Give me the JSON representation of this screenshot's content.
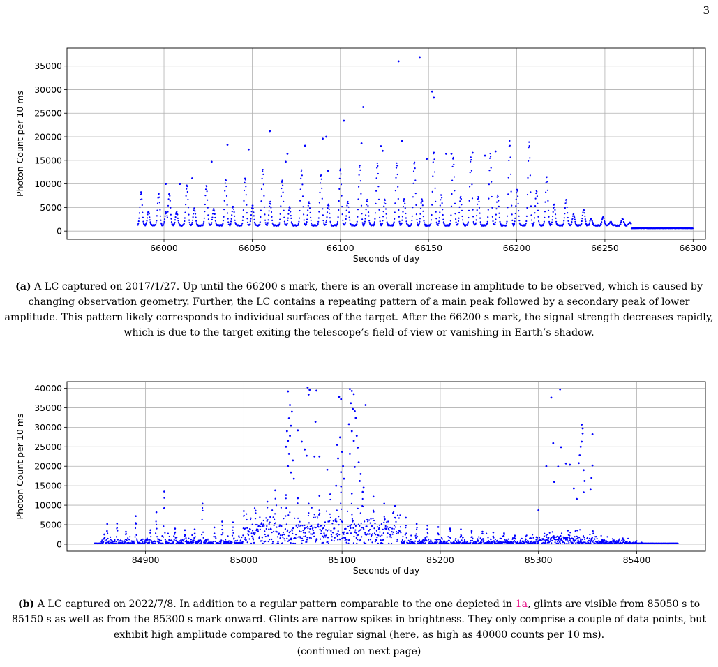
{
  "page": {
    "number": "3",
    "bottom_note": "(continued on next page)"
  },
  "figures": [
    {
      "caption_label": "(a)",
      "caption_text": " A LC captured on 2017/1/27. Up until the 66200 s mark, there is an overall increase in amplitude to be observed, which is caused by changing observation geometry. Further, the LC contains a repeating pattern of a main peak followed by a secondary peak of lower amplitude. This pattern likely corresponds to individual surfaces of the target. After the 66200 s mark, the signal strength decreases rapidly, which is due to the target exiting the telescope’s field-of-view or vanishing in Earth’s shadow."
    },
    {
      "caption_label": "(b)",
      "caption_pre": " A LC captured on 2022/7/8. In addition to a regular pattern comparable to the one depicted in ",
      "caption_ref": "1a",
      "caption_post": ", glints are visible from 85050 s to 85150 s as well as from the 85300 s mark onward. Glints are narrow spikes in brightness. They only comprise a couple of data points, but exhibit high amplitude compared to the regular signal (here, as high as 40000 counts per 10 ms)."
    }
  ],
  "chart_data": [
    {
      "type": "scatter",
      "xlabel": "Seconds of day",
      "ylabel": "Photon Count per 10 ms",
      "xlim": [
        65945,
        66307
      ],
      "ylim": [
        -1750,
        38800
      ],
      "xticks": [
        66000,
        66050,
        66100,
        66150,
        66200,
        66250,
        66300
      ],
      "yticks": [
        0,
        5000,
        10000,
        15000,
        20000,
        25000,
        30000,
        35000
      ],
      "grid": true,
      "color": "#0000ff",
      "x_range": [
        65985,
        66300
      ],
      "baseline": 1200,
      "tail_level": 600,
      "main_peaks": [
        [
          65987,
          7000
        ],
        [
          65997,
          6800
        ],
        [
          66003,
          6800
        ],
        [
          66013,
          8500
        ],
        [
          66024,
          8500
        ],
        [
          66035,
          9800
        ],
        [
          66046,
          10000
        ],
        [
          66056,
          11800
        ],
        [
          66067,
          9500
        ],
        [
          66078,
          11800
        ],
        [
          66089,
          10800
        ],
        [
          66100,
          12000
        ],
        [
          66111,
          12800
        ],
        [
          66121,
          13200
        ],
        [
          66132,
          13300
        ],
        [
          66142,
          13500
        ],
        [
          66153,
          15700
        ],
        [
          66164,
          14500
        ],
        [
          66174,
          14500
        ],
        [
          66185,
          15300
        ],
        [
          66196,
          17900
        ],
        [
          66207,
          17700
        ],
        [
          66217,
          10500
        ],
        [
          66228,
          5500
        ],
        [
          66238,
          3500
        ],
        [
          66249,
          1800
        ],
        [
          66260,
          1500
        ]
      ],
      "outliers": [
        [
          66001,
          10000
        ],
        [
          66016,
          11200
        ],
        [
          66027,
          14700
        ],
        [
          66036,
          18300
        ],
        [
          66048,
          17300
        ],
        [
          66060,
          21200
        ],
        [
          66070,
          16400
        ],
        [
          66080,
          18100
        ],
        [
          66090,
          19600
        ],
        [
          66092,
          20000
        ],
        [
          66102,
          23400
        ],
        [
          66113,
          26300
        ],
        [
          66112,
          18600
        ],
        [
          66123,
          18000
        ],
        [
          66124,
          17000
        ],
        [
          66133,
          36000
        ],
        [
          66135,
          19100
        ],
        [
          66145,
          36900
        ],
        [
          66152,
          29600
        ],
        [
          66153,
          28300
        ],
        [
          66160,
          16400
        ],
        [
          66163,
          16400
        ],
        [
          66175,
          16600
        ],
        [
          66182,
          16000
        ],
        [
          66188,
          16900
        ],
        [
          66149,
          15300
        ],
        [
          66093,
          12800
        ],
        [
          66069,
          14700
        ],
        [
          66009,
          10000
        ]
      ]
    },
    {
      "type": "scatter",
      "xlabel": "Seconds of day",
      "ylabel": "Photon Count per 10 ms",
      "xlim": [
        84820,
        85470
      ],
      "ylim": [
        -1800,
        41700
      ],
      "xticks": [
        84900,
        85000,
        85100,
        85200,
        85300,
        85400
      ],
      "yticks": [
        0,
        5000,
        10000,
        15000,
        20000,
        25000,
        30000,
        35000,
        40000
      ],
      "grid": true,
      "color": "#0000ff",
      "x_range": [
        84848,
        85442
      ],
      "baseline": 200,
      "regular_peaks": [
        [
          84858,
          2500
        ],
        [
          84861,
          5200
        ],
        [
          84871,
          5300
        ],
        [
          84880,
          3200
        ],
        [
          84890,
          7200
        ],
        [
          84905,
          3600
        ],
        [
          84911,
          8200
        ],
        [
          84919,
          13500
        ],
        [
          84930,
          4000
        ],
        [
          84940,
          3600
        ],
        [
          84950,
          3800
        ],
        [
          84958,
          10400
        ],
        [
          84970,
          4300
        ],
        [
          84978,
          5800
        ],
        [
          84989,
          5600
        ],
        [
          85000,
          8500
        ],
        [
          85012,
          8600
        ],
        [
          85024,
          10900
        ],
        [
          85032,
          13800
        ],
        [
          85043,
          12600
        ],
        [
          85055,
          11800
        ],
        [
          85066,
          10400
        ],
        [
          85077,
          12400
        ],
        [
          85088,
          12800
        ],
        [
          85099,
          14800
        ],
        [
          85110,
          13000
        ],
        [
          85121,
          13400
        ],
        [
          85132,
          12200
        ],
        [
          85143,
          10400
        ],
        [
          85154,
          9800
        ],
        [
          85165,
          6800
        ],
        [
          85176,
          5200
        ],
        [
          85187,
          4800
        ],
        [
          85198,
          4400
        ],
        [
          85210,
          4000
        ],
        [
          85221,
          3800
        ],
        [
          85232,
          3400
        ],
        [
          85243,
          3200
        ],
        [
          85254,
          3000
        ],
        [
          85265,
          2800
        ],
        [
          85276,
          2200
        ],
        [
          85287,
          2000
        ],
        [
          85298,
          1800
        ],
        [
          85310,
          1600
        ],
        [
          85321,
          1600
        ],
        [
          85332,
          1400
        ],
        [
          85343,
          1300
        ],
        [
          85354,
          1200
        ],
        [
          85365,
          1000
        ],
        [
          85376,
          900
        ],
        [
          85390,
          600
        ],
        [
          85405,
          400
        ]
      ],
      "glints": [
        [
          85045,
          39200
        ],
        [
          85047,
          35700
        ],
        [
          85049,
          34000
        ],
        [
          85046,
          32300
        ],
        [
          85048,
          30400
        ],
        [
          85044,
          29000
        ],
        [
          85047,
          27800
        ],
        [
          85045,
          26500
        ],
        [
          85043,
          25000
        ],
        [
          85046,
          23200
        ],
        [
          85050,
          21500
        ],
        [
          85045,
          20000
        ],
        [
          85048,
          18400
        ],
        [
          85051,
          16800
        ],
        [
          85055,
          29200
        ],
        [
          85059,
          26300
        ],
        [
          85062,
          24300
        ],
        [
          85065,
          40200
        ],
        [
          85067,
          39600
        ],
        [
          85066,
          38400
        ],
        [
          85064,
          22700
        ],
        [
          85074,
          39400
        ],
        [
          85073,
          31400
        ],
        [
          85072,
          22500
        ],
        [
          85077,
          22500
        ],
        [
          85085,
          19100
        ],
        [
          85097,
          37800
        ],
        [
          85099,
          37200
        ],
        [
          85098,
          27400
        ],
        [
          85095,
          25500
        ],
        [
          85100,
          23700
        ],
        [
          85096,
          22000
        ],
        [
          85101,
          20000
        ],
        [
          85099,
          18500
        ],
        [
          85102,
          16800
        ],
        [
          85094,
          15000
        ],
        [
          85108,
          39800
        ],
        [
          85110,
          39300
        ],
        [
          85112,
          38500
        ],
        [
          85109,
          36200
        ],
        [
          85111,
          34700
        ],
        [
          85113,
          34100
        ],
        [
          85114,
          32400
        ],
        [
          85107,
          30800
        ],
        [
          85110,
          29000
        ],
        [
          85115,
          27800
        ],
        [
          85112,
          26500
        ],
        [
          85116,
          24800
        ],
        [
          85108,
          23200
        ],
        [
          85117,
          21000
        ],
        [
          85113,
          19800
        ],
        [
          85119,
          18000
        ],
        [
          85124,
          35700
        ],
        [
          85118,
          16200
        ],
        [
          85122,
          14500
        ],
        [
          85300,
          8700
        ],
        [
          85308,
          20000
        ],
        [
          85313,
          37600
        ],
        [
          85315,
          25900
        ],
        [
          85316,
          16000
        ],
        [
          85322,
          39700
        ],
        [
          85323,
          24900
        ],
        [
          85320,
          19900
        ],
        [
          85328,
          20700
        ],
        [
          85332,
          20400
        ],
        [
          85336,
          14300
        ],
        [
          85339,
          11600
        ],
        [
          85344,
          30700
        ],
        [
          85345,
          29700
        ],
        [
          85345,
          28400
        ],
        [
          85344,
          26300
        ],
        [
          85343,
          25000
        ],
        [
          85342,
          22800
        ],
        [
          85341,
          20800
        ],
        [
          85346,
          19000
        ],
        [
          85347,
          16200
        ],
        [
          85346,
          13300
        ],
        [
          85355,
          28200
        ],
        [
          85355,
          20200
        ],
        [
          85354,
          17000
        ],
        [
          85353,
          14000
        ]
      ]
    }
  ]
}
